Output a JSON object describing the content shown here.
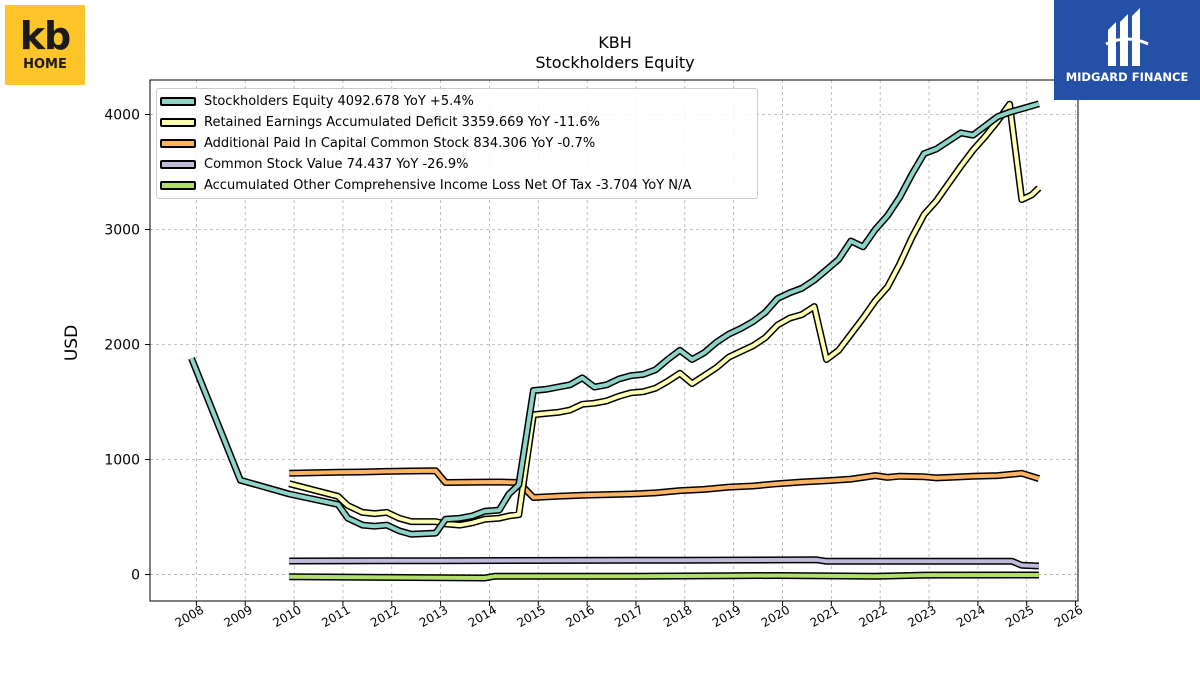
{
  "logos": {
    "left": {
      "line1": "kb",
      "line2": "HOME",
      "color": "#fdc52a"
    },
    "right": {
      "name": "MIDGARD FINANCE",
      "color": "#2450a8"
    }
  },
  "chart_data": {
    "type": "line",
    "title": "KBH",
    "subtitle": "Stockholders  Equity",
    "ylabel": "USD",
    "xlabel": "",
    "xlim": [
      2007.05,
      2026.05
    ],
    "ylim": [
      -230,
      4300
    ],
    "xticks": [
      2008,
      2009,
      2010,
      2011,
      2012,
      2013,
      2014,
      2015,
      2016,
      2017,
      2018,
      2019,
      2020,
      2021,
      2022,
      2023,
      2024,
      2025,
      2026
    ],
    "yticks": [
      0,
      1000,
      2000,
      3000,
      4000
    ],
    "grid": true,
    "legend_position": "top-left",
    "series": [
      {
        "name": "Stockholders Equity",
        "legend_label": "Stockholders Equity  4092.678 YoY +5.4%",
        "color": "#8dd3c7",
        "points": [
          [
            2007.9,
            1880
          ],
          [
            2008.9,
            820
          ],
          [
            2009.9,
            700
          ],
          [
            2010.9,
            610
          ],
          [
            2011.1,
            490
          ],
          [
            2011.4,
            430
          ],
          [
            2011.65,
            420
          ],
          [
            2011.9,
            430
          ],
          [
            2012.15,
            380
          ],
          [
            2012.4,
            350
          ],
          [
            2012.9,
            360
          ],
          [
            2013.1,
            480
          ],
          [
            2013.4,
            490
          ],
          [
            2013.65,
            510
          ],
          [
            2013.9,
            550
          ],
          [
            2014.2,
            560
          ],
          [
            2014.4,
            700
          ],
          [
            2014.6,
            780
          ],
          [
            2014.9,
            1600
          ],
          [
            2015.15,
            1610
          ],
          [
            2015.4,
            1630
          ],
          [
            2015.65,
            1650
          ],
          [
            2015.9,
            1710
          ],
          [
            2016.15,
            1630
          ],
          [
            2016.4,
            1650
          ],
          [
            2016.65,
            1700
          ],
          [
            2016.9,
            1730
          ],
          [
            2017.15,
            1740
          ],
          [
            2017.4,
            1780
          ],
          [
            2017.65,
            1870
          ],
          [
            2017.9,
            1950
          ],
          [
            2018.15,
            1870
          ],
          [
            2018.4,
            1930
          ],
          [
            2018.65,
            2020
          ],
          [
            2018.9,
            2090
          ],
          [
            2019.15,
            2140
          ],
          [
            2019.4,
            2200
          ],
          [
            2019.65,
            2280
          ],
          [
            2019.9,
            2400
          ],
          [
            2020.15,
            2450
          ],
          [
            2020.4,
            2490
          ],
          [
            2020.65,
            2560
          ],
          [
            2020.9,
            2650
          ],
          [
            2021.15,
            2740
          ],
          [
            2021.4,
            2900
          ],
          [
            2021.65,
            2850
          ],
          [
            2021.9,
            3000
          ],
          [
            2022.15,
            3120
          ],
          [
            2022.4,
            3280
          ],
          [
            2022.65,
            3480
          ],
          [
            2022.9,
            3660
          ],
          [
            2023.15,
            3700
          ],
          [
            2023.4,
            3770
          ],
          [
            2023.65,
            3840
          ],
          [
            2023.9,
            3820
          ],
          [
            2024.15,
            3900
          ],
          [
            2024.4,
            3980
          ],
          [
            2024.65,
            4020
          ],
          [
            2024.9,
            4050
          ],
          [
            2025.25,
            4092.678
          ]
        ]
      },
      {
        "name": "Retained Earnings Accumulated Deficit",
        "legend_label": "Retained Earnings Accumulated Deficit  3359.669 YoY -11.6%",
        "color": "#ffffb3",
        "points": [
          [
            2009.9,
            790
          ],
          [
            2010.9,
            680
          ],
          [
            2011.1,
            600
          ],
          [
            2011.4,
            540
          ],
          [
            2011.65,
            530
          ],
          [
            2011.9,
            540
          ],
          [
            2012.15,
            490
          ],
          [
            2012.4,
            460
          ],
          [
            2012.9,
            460
          ],
          [
            2013.1,
            440
          ],
          [
            2013.4,
            430
          ],
          [
            2013.65,
            450
          ],
          [
            2013.9,
            480
          ],
          [
            2014.2,
            490
          ],
          [
            2014.4,
            510
          ],
          [
            2014.6,
            520
          ],
          [
            2014.9,
            1390
          ],
          [
            2015.15,
            1400
          ],
          [
            2015.4,
            1410
          ],
          [
            2015.65,
            1430
          ],
          [
            2015.9,
            1480
          ],
          [
            2016.15,
            1490
          ],
          [
            2016.4,
            1510
          ],
          [
            2016.65,
            1550
          ],
          [
            2016.9,
            1580
          ],
          [
            2017.15,
            1590
          ],
          [
            2017.4,
            1620
          ],
          [
            2017.65,
            1680
          ],
          [
            2017.9,
            1750
          ],
          [
            2018.15,
            1660
          ],
          [
            2018.4,
            1730
          ],
          [
            2018.65,
            1800
          ],
          [
            2018.9,
            1890
          ],
          [
            2019.15,
            1940
          ],
          [
            2019.4,
            1990
          ],
          [
            2019.65,
            2060
          ],
          [
            2019.9,
            2170
          ],
          [
            2020.15,
            2230
          ],
          [
            2020.4,
            2260
          ],
          [
            2020.65,
            2330
          ],
          [
            2020.9,
            1870
          ],
          [
            2021.15,
            1950
          ],
          [
            2021.4,
            2090
          ],
          [
            2021.65,
            2230
          ],
          [
            2021.9,
            2380
          ],
          [
            2022.15,
            2500
          ],
          [
            2022.4,
            2700
          ],
          [
            2022.65,
            2930
          ],
          [
            2022.9,
            3130
          ],
          [
            2023.15,
            3250
          ],
          [
            2023.4,
            3400
          ],
          [
            2023.65,
            3550
          ],
          [
            2023.9,
            3690
          ],
          [
            2024.15,
            3810
          ],
          [
            2024.4,
            3940
          ],
          [
            2024.65,
            4090
          ],
          [
            2024.9,
            3260
          ],
          [
            2025.1,
            3300
          ],
          [
            2025.25,
            3359.669
          ]
        ]
      },
      {
        "name": "Additional Paid In Capital Common Stock",
        "legend_label": "Additional Paid In Capital Common Stock  834.306 YoY -0.7%",
        "color": "#fdb462",
        "points": [
          [
            2009.9,
            880
          ],
          [
            2010.4,
            885
          ],
          [
            2010.9,
            890
          ],
          [
            2011.4,
            892
          ],
          [
            2011.9,
            897
          ],
          [
            2012.4,
            900
          ],
          [
            2012.9,
            902
          ],
          [
            2013.1,
            800
          ],
          [
            2013.6,
            803
          ],
          [
            2014.2,
            805
          ],
          [
            2014.6,
            800
          ],
          [
            2014.9,
            670
          ],
          [
            2015.4,
            680
          ],
          [
            2015.9,
            690
          ],
          [
            2016.4,
            695
          ],
          [
            2016.9,
            700
          ],
          [
            2017.4,
            710
          ],
          [
            2017.9,
            730
          ],
          [
            2018.4,
            740
          ],
          [
            2018.9,
            760
          ],
          [
            2019.4,
            770
          ],
          [
            2019.9,
            790
          ],
          [
            2020.4,
            805
          ],
          [
            2020.9,
            815
          ],
          [
            2021.4,
            830
          ],
          [
            2021.9,
            860
          ],
          [
            2022.15,
            845
          ],
          [
            2022.4,
            855
          ],
          [
            2022.9,
            850
          ],
          [
            2023.15,
            840
          ],
          [
            2023.4,
            845
          ],
          [
            2023.9,
            855
          ],
          [
            2024.4,
            860
          ],
          [
            2024.9,
            880
          ],
          [
            2025.25,
            834.306
          ]
        ]
      },
      {
        "name": "Common Stock Value",
        "legend_label": "Common Stock Value  74.437 YoY -26.9%",
        "color": "#bebada",
        "points": [
          [
            2009.9,
            118
          ],
          [
            2012.9,
            120
          ],
          [
            2017.9,
            125
          ],
          [
            2020.7,
            128
          ],
          [
            2020.9,
            115
          ],
          [
            2024.7,
            115
          ],
          [
            2024.9,
            80
          ],
          [
            2025.25,
            74.437
          ]
        ]
      },
      {
        "name": "Accumulated Other Comprehensive Income Loss Net Of Tax",
        "legend_label": "Accumulated Other Comprehensive Income Loss Net Of Tax  -3.704 YoY N/A",
        "color": "#b3de69",
        "points": [
          [
            2009.9,
            -20
          ],
          [
            2011.9,
            -25
          ],
          [
            2013.9,
            -30
          ],
          [
            2014.1,
            -15
          ],
          [
            2016.9,
            -15
          ],
          [
            2018.9,
            -10
          ],
          [
            2019.9,
            -8
          ],
          [
            2021.9,
            -15
          ],
          [
            2022.9,
            -5
          ],
          [
            2024.9,
            -4
          ],
          [
            2025.25,
            -3.704
          ]
        ]
      }
    ]
  }
}
